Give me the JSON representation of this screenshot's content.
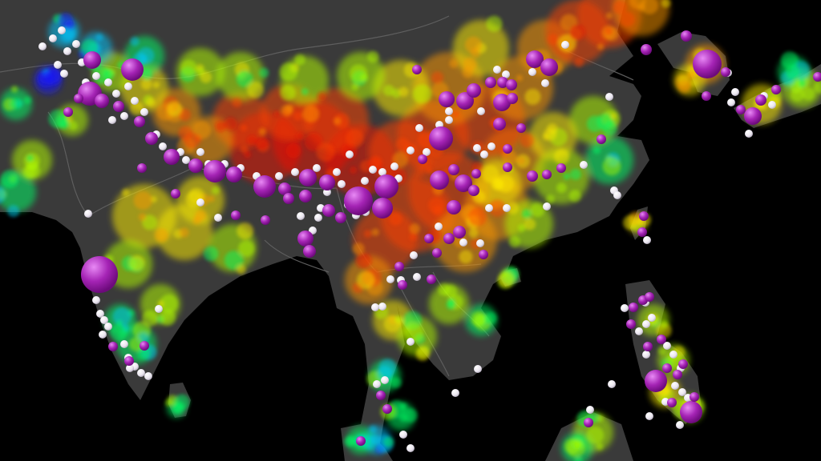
{
  "map": {
    "ocean_color": "#000000",
    "land_color": "#3a3a3a",
    "border_color": "#5a5a5a",
    "susceptibility_palette": [
      "#1a1aff",
      "#00c8ff",
      "#00ff66",
      "#b4ff00",
      "#ffee00",
      "#ff9900",
      "#ff4400",
      "#ee1100"
    ],
    "landslide_marker": {
      "fatal_color": "#9c1aa8",
      "fatal_highlight": "#e06ef0",
      "non_fatal_color": "#f2eef6"
    }
  }
}
